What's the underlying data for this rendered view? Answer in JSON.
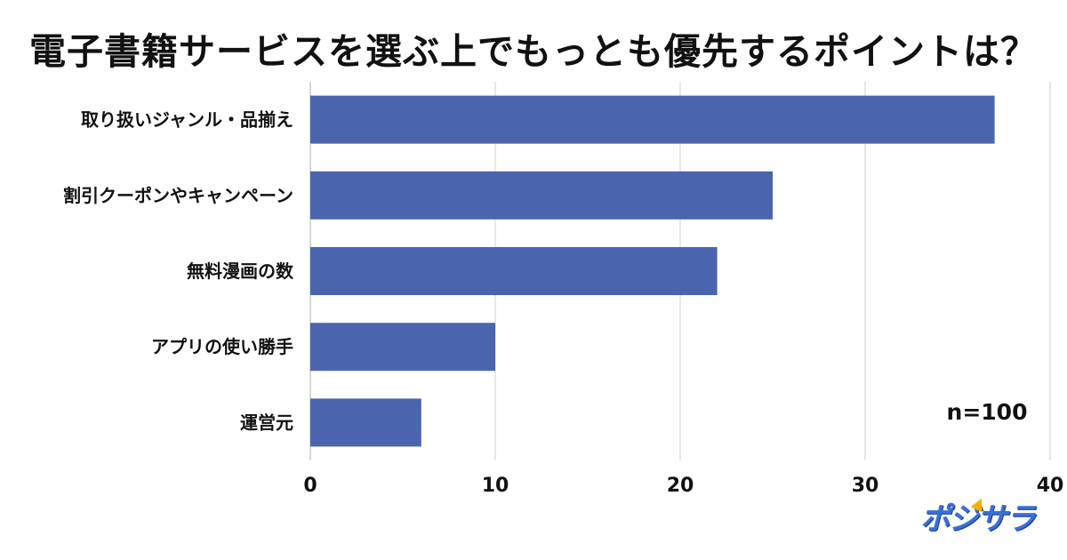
{
  "chart_data": {
    "type": "bar",
    "orientation": "horizontal",
    "title": "電子書籍サービスを選ぶ上でもっとも優先するポイントは？",
    "categories": [
      "取り扱いジャンル・品揃え",
      "割引クーポンやキャンペーン",
      "無料漫画の数",
      "アプリの使い勝手",
      "運営元"
    ],
    "values": [
      37,
      25,
      22,
      10,
      6
    ],
    "xlim": [
      0,
      40
    ],
    "xticks": [
      0,
      10,
      20,
      30,
      40
    ],
    "grid": true,
    "bar_color": "#4a65ae",
    "annotation": "n=100"
  },
  "logo": {
    "text": "ポジサラ",
    "color": "#3b6fd8"
  }
}
